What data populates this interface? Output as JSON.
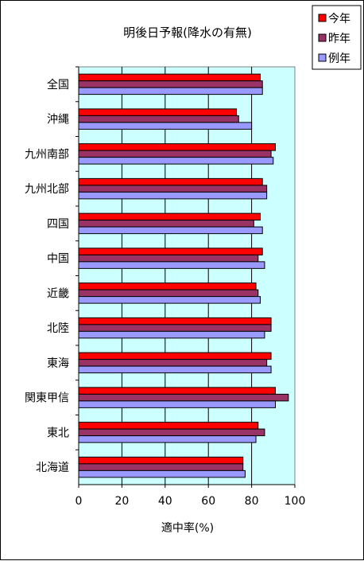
{
  "chart_data": {
    "type": "bar",
    "orientation": "horizontal",
    "title": "明後日予報(降水の有無)",
    "xlabel": "適中率(%)",
    "ylabel": "",
    "xlim": [
      0,
      100
    ],
    "xticks": [
      "0",
      "20",
      "40",
      "60",
      "80",
      "100"
    ],
    "grid": true,
    "legend_position": "top-right",
    "categories": [
      "全国",
      "沖縄",
      "九州南部",
      "九州北部",
      "四国",
      "中国",
      "近畿",
      "北陸",
      "東海",
      "関東甲信",
      "東北",
      "北海道"
    ],
    "series": [
      {
        "name": "今年",
        "color": "#ff0000",
        "values": [
          84,
          73,
          91,
          85,
          84,
          85,
          82,
          89,
          89,
          91,
          83,
          76
        ]
      },
      {
        "name": "昨年",
        "color": "#993366",
        "values": [
          85,
          74,
          89,
          87,
          81,
          83,
          83,
          89,
          87,
          97,
          86,
          76
        ]
      },
      {
        "name": "例年",
        "color": "#9999ff",
        "values": [
          85,
          80,
          90,
          87,
          85,
          86,
          84,
          86,
          89,
          91,
          82,
          77
        ]
      }
    ],
    "plot_background": "#ccffff"
  }
}
